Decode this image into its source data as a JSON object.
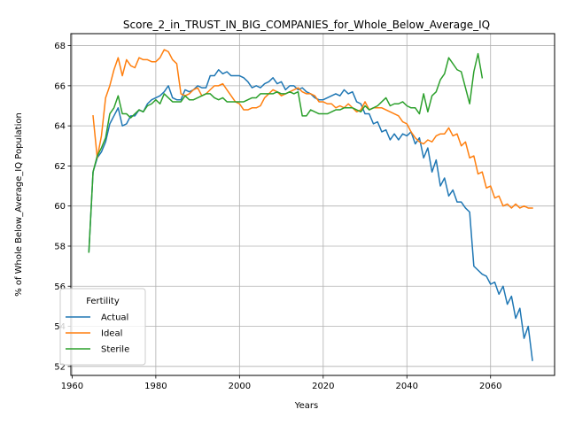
{
  "chart_data": {
    "type": "line",
    "title": "Score_2_in_TRUST_IN_BIG_COMPANIES_for_Whole_Below_Average_IQ",
    "xlabel": "Years",
    "ylabel": "% of Whole Below_Average_IQ Population",
    "xlim": [
      1959.7,
      2075.3
    ],
    "ylim": [
      51.55,
      68.6
    ],
    "xticks": [
      1960,
      1980,
      2000,
      2020,
      2040,
      2060
    ],
    "yticks": [
      52,
      54,
      56,
      58,
      60,
      62,
      64,
      66,
      68
    ],
    "grid": true,
    "legend": {
      "title": "Fertility",
      "placement": "lower-left"
    },
    "series": [
      {
        "name": "Actual",
        "color": "#1f77b4",
        "points": [
          [
            1964,
            57.7
          ],
          [
            1965,
            61.7
          ],
          [
            1966,
            62.4
          ],
          [
            1967,
            62.7
          ],
          [
            1968,
            63.2
          ],
          [
            1969,
            64.1
          ],
          [
            1970,
            64.5
          ],
          [
            1971,
            64.9
          ],
          [
            1972,
            64.0
          ],
          [
            1973,
            64.1
          ],
          [
            1974,
            64.5
          ],
          [
            1975,
            64.5
          ],
          [
            1976,
            64.8
          ],
          [
            1977,
            64.7
          ],
          [
            1978,
            65.1
          ],
          [
            1979,
            65.3
          ],
          [
            1980,
            65.4
          ],
          [
            1981,
            65.5
          ],
          [
            1982,
            65.7
          ],
          [
            1983,
            66.0
          ],
          [
            1984,
            65.4
          ],
          [
            1985,
            65.3
          ],
          [
            1986,
            65.3
          ],
          [
            1987,
            65.8
          ],
          [
            1988,
            65.7
          ],
          [
            1989,
            65.8
          ],
          [
            1990,
            66.0
          ],
          [
            1991,
            65.9
          ],
          [
            1992,
            65.9
          ],
          [
            1993,
            66.5
          ],
          [
            1994,
            66.5
          ],
          [
            1995,
            66.8
          ],
          [
            1996,
            66.6
          ],
          [
            1997,
            66.7
          ],
          [
            1998,
            66.5
          ],
          [
            1999,
            66.5
          ],
          [
            2000,
            66.5
          ],
          [
            2001,
            66.4
          ],
          [
            2002,
            66.2
          ],
          [
            2003,
            65.9
          ],
          [
            2004,
            66.0
          ],
          [
            2005,
            65.9
          ],
          [
            2006,
            66.1
          ],
          [
            2007,
            66.2
          ],
          [
            2008,
            66.4
          ],
          [
            2009,
            66.1
          ],
          [
            2010,
            66.2
          ],
          [
            2011,
            65.8
          ],
          [
            2012,
            66.0
          ],
          [
            2013,
            66.0
          ],
          [
            2014,
            65.8
          ],
          [
            2015,
            65.9
          ],
          [
            2016,
            65.7
          ],
          [
            2017,
            65.6
          ],
          [
            2018,
            65.4
          ],
          [
            2019,
            65.3
          ],
          [
            2020,
            65.3
          ],
          [
            2021,
            65.4
          ],
          [
            2022,
            65.5
          ],
          [
            2023,
            65.6
          ],
          [
            2024,
            65.5
          ],
          [
            2025,
            65.8
          ],
          [
            2026,
            65.6
          ],
          [
            2027,
            65.7
          ],
          [
            2028,
            65.2
          ],
          [
            2029,
            65.1
          ],
          [
            2030,
            64.6
          ],
          [
            2031,
            64.6
          ],
          [
            2032,
            64.1
          ],
          [
            2033,
            64.2
          ],
          [
            2034,
            63.7
          ],
          [
            2035,
            63.8
          ],
          [
            2036,
            63.3
          ],
          [
            2037,
            63.6
          ],
          [
            2038,
            63.3
          ],
          [
            2039,
            63.6
          ],
          [
            2040,
            63.5
          ],
          [
            2041,
            63.7
          ],
          [
            2042,
            63.1
          ],
          [
            2043,
            63.4
          ],
          [
            2044,
            62.4
          ],
          [
            2045,
            62.9
          ],
          [
            2046,
            61.7
          ],
          [
            2047,
            62.3
          ],
          [
            2048,
            61.0
          ],
          [
            2049,
            61.4
          ],
          [
            2050,
            60.5
          ],
          [
            2051,
            60.8
          ],
          [
            2052,
            60.2
          ],
          [
            2053,
            60.2
          ],
          [
            2054,
            59.9
          ],
          [
            2055,
            59.7
          ],
          [
            2056,
            57.0
          ],
          [
            2057,
            56.8
          ],
          [
            2058,
            56.6
          ],
          [
            2059,
            56.5
          ],
          [
            2060,
            56.1
          ],
          [
            2061,
            56.2
          ],
          [
            2062,
            55.6
          ],
          [
            2063,
            56.0
          ],
          [
            2064,
            55.1
          ],
          [
            2065,
            55.5
          ],
          [
            2066,
            54.4
          ],
          [
            2067,
            54.9
          ],
          [
            2068,
            53.4
          ],
          [
            2069,
            54.0
          ],
          [
            2070,
            52.3
          ]
        ]
      },
      {
        "name": "Ideal",
        "color": "#ff7f0e",
        "points": [
          [
            1965,
            64.5
          ],
          [
            1966,
            62.4
          ],
          [
            1967,
            63.5
          ],
          [
            1968,
            65.4
          ],
          [
            1969,
            66.0
          ],
          [
            1970,
            66.8
          ],
          [
            1971,
            67.4
          ],
          [
            1972,
            66.5
          ],
          [
            1973,
            67.3
          ],
          [
            1974,
            67.0
          ],
          [
            1975,
            66.9
          ],
          [
            1976,
            67.4
          ],
          [
            1977,
            67.3
          ],
          [
            1978,
            67.3
          ],
          [
            1979,
            67.2
          ],
          [
            1980,
            67.2
          ],
          [
            1981,
            67.4
          ],
          [
            1982,
            67.8
          ],
          [
            1983,
            67.7
          ],
          [
            1984,
            67.3
          ],
          [
            1985,
            67.1
          ],
          [
            1986,
            65.6
          ],
          [
            1987,
            65.5
          ],
          [
            1988,
            65.6
          ],
          [
            1989,
            65.8
          ],
          [
            1990,
            65.9
          ],
          [
            1991,
            65.5
          ],
          [
            1992,
            65.6
          ],
          [
            1993,
            65.8
          ],
          [
            1994,
            66.0
          ],
          [
            1995,
            66.0
          ],
          [
            1996,
            66.1
          ],
          [
            1997,
            65.8
          ],
          [
            1998,
            65.5
          ],
          [
            1999,
            65.2
          ],
          [
            2000,
            65.1
          ],
          [
            2001,
            64.8
          ],
          [
            2002,
            64.8
          ],
          [
            2003,
            64.9
          ],
          [
            2004,
            64.9
          ],
          [
            2005,
            65.0
          ],
          [
            2006,
            65.4
          ],
          [
            2007,
            65.6
          ],
          [
            2008,
            65.8
          ],
          [
            2009,
            65.7
          ],
          [
            2010,
            65.5
          ],
          [
            2011,
            65.6
          ],
          [
            2012,
            65.7
          ],
          [
            2013,
            65.8
          ],
          [
            2014,
            65.9
          ],
          [
            2015,
            65.7
          ],
          [
            2016,
            65.6
          ],
          [
            2017,
            65.6
          ],
          [
            2018,
            65.5
          ],
          [
            2019,
            65.2
          ],
          [
            2020,
            65.2
          ],
          [
            2021,
            65.1
          ],
          [
            2022,
            65.1
          ],
          [
            2023,
            64.9
          ],
          [
            2024,
            65.0
          ],
          [
            2025,
            64.9
          ],
          [
            2026,
            65.1
          ],
          [
            2027,
            64.9
          ],
          [
            2028,
            64.7
          ],
          [
            2029,
            64.8
          ],
          [
            2030,
            65.2
          ],
          [
            2031,
            64.8
          ],
          [
            2032,
            64.9
          ],
          [
            2033,
            64.9
          ],
          [
            2034,
            64.9
          ],
          [
            2035,
            64.8
          ],
          [
            2036,
            64.7
          ],
          [
            2037,
            64.6
          ],
          [
            2038,
            64.5
          ],
          [
            2039,
            64.2
          ],
          [
            2040,
            64.1
          ],
          [
            2041,
            63.7
          ],
          [
            2042,
            63.4
          ],
          [
            2043,
            63.2
          ],
          [
            2044,
            63.1
          ],
          [
            2045,
            63.3
          ],
          [
            2046,
            63.2
          ],
          [
            2047,
            63.5
          ],
          [
            2048,
            63.6
          ],
          [
            2049,
            63.6
          ],
          [
            2050,
            63.9
          ],
          [
            2051,
            63.5
          ],
          [
            2052,
            63.6
          ],
          [
            2053,
            63.0
          ],
          [
            2054,
            63.2
          ],
          [
            2055,
            62.4
          ],
          [
            2056,
            62.5
          ],
          [
            2057,
            61.6
          ],
          [
            2058,
            61.7
          ],
          [
            2059,
            60.9
          ],
          [
            2060,
            61.0
          ],
          [
            2061,
            60.4
          ],
          [
            2062,
            60.5
          ],
          [
            2063,
            60.0
          ],
          [
            2064,
            60.1
          ],
          [
            2065,
            59.9
          ],
          [
            2066,
            60.1
          ],
          [
            2067,
            59.9
          ],
          [
            2068,
            60.0
          ],
          [
            2069,
            59.9
          ],
          [
            2070,
            59.9
          ]
        ]
      },
      {
        "name": "Sterile",
        "color": "#2ca02c",
        "points": [
          [
            1964,
            57.7
          ],
          [
            1965,
            61.7
          ],
          [
            1966,
            62.5
          ],
          [
            1967,
            62.9
          ],
          [
            1968,
            63.4
          ],
          [
            1969,
            64.6
          ],
          [
            1970,
            64.9
          ],
          [
            1971,
            65.5
          ],
          [
            1972,
            64.6
          ],
          [
            1973,
            64.6
          ],
          [
            1974,
            64.4
          ],
          [
            1975,
            64.6
          ],
          [
            1976,
            64.8
          ],
          [
            1977,
            64.7
          ],
          [
            1978,
            65.0
          ],
          [
            1979,
            65.1
          ],
          [
            1980,
            65.3
          ],
          [
            1981,
            65.1
          ],
          [
            1982,
            65.6
          ],
          [
            1983,
            65.4
          ],
          [
            1984,
            65.2
          ],
          [
            1985,
            65.2
          ],
          [
            1986,
            65.2
          ],
          [
            1987,
            65.5
          ],
          [
            1988,
            65.3
          ],
          [
            1989,
            65.3
          ],
          [
            1990,
            65.4
          ],
          [
            1991,
            65.5
          ],
          [
            1992,
            65.6
          ],
          [
            1993,
            65.6
          ],
          [
            1994,
            65.4
          ],
          [
            1995,
            65.3
          ],
          [
            1996,
            65.4
          ],
          [
            1997,
            65.2
          ],
          [
            1998,
            65.2
          ],
          [
            1999,
            65.2
          ],
          [
            2000,
            65.2
          ],
          [
            2001,
            65.2
          ],
          [
            2002,
            65.3
          ],
          [
            2003,
            65.4
          ],
          [
            2004,
            65.4
          ],
          [
            2005,
            65.6
          ],
          [
            2006,
            65.6
          ],
          [
            2007,
            65.6
          ],
          [
            2008,
            65.6
          ],
          [
            2009,
            65.7
          ],
          [
            2010,
            65.6
          ],
          [
            2011,
            65.6
          ],
          [
            2012,
            65.7
          ],
          [
            2013,
            65.6
          ],
          [
            2014,
            65.7
          ],
          [
            2015,
            64.5
          ],
          [
            2016,
            64.5
          ],
          [
            2017,
            64.8
          ],
          [
            2018,
            64.7
          ],
          [
            2019,
            64.6
          ],
          [
            2020,
            64.6
          ],
          [
            2021,
            64.6
          ],
          [
            2022,
            64.7
          ],
          [
            2023,
            64.8
          ],
          [
            2024,
            64.8
          ],
          [
            2025,
            64.9
          ],
          [
            2026,
            64.9
          ],
          [
            2027,
            64.9
          ],
          [
            2028,
            64.8
          ],
          [
            2029,
            64.7
          ],
          [
            2030,
            65.0
          ],
          [
            2031,
            64.8
          ],
          [
            2032,
            64.9
          ],
          [
            2033,
            65.0
          ],
          [
            2034,
            65.2
          ],
          [
            2035,
            65.4
          ],
          [
            2036,
            65.0
          ],
          [
            2037,
            65.1
          ],
          [
            2038,
            65.1
          ],
          [
            2039,
            65.2
          ],
          [
            2040,
            65.0
          ],
          [
            2041,
            64.9
          ],
          [
            2042,
            64.9
          ],
          [
            2043,
            64.6
          ],
          [
            2044,
            65.6
          ],
          [
            2045,
            64.7
          ],
          [
            2046,
            65.5
          ],
          [
            2047,
            65.7
          ],
          [
            2048,
            66.3
          ],
          [
            2049,
            66.6
          ],
          [
            2050,
            67.4
          ],
          [
            2051,
            67.1
          ],
          [
            2052,
            66.8
          ],
          [
            2053,
            66.7
          ],
          [
            2054,
            65.9
          ],
          [
            2055,
            65.1
          ],
          [
            2056,
            66.7
          ],
          [
            2057,
            67.6
          ],
          [
            2058,
            66.4
          ]
        ]
      }
    ]
  }
}
